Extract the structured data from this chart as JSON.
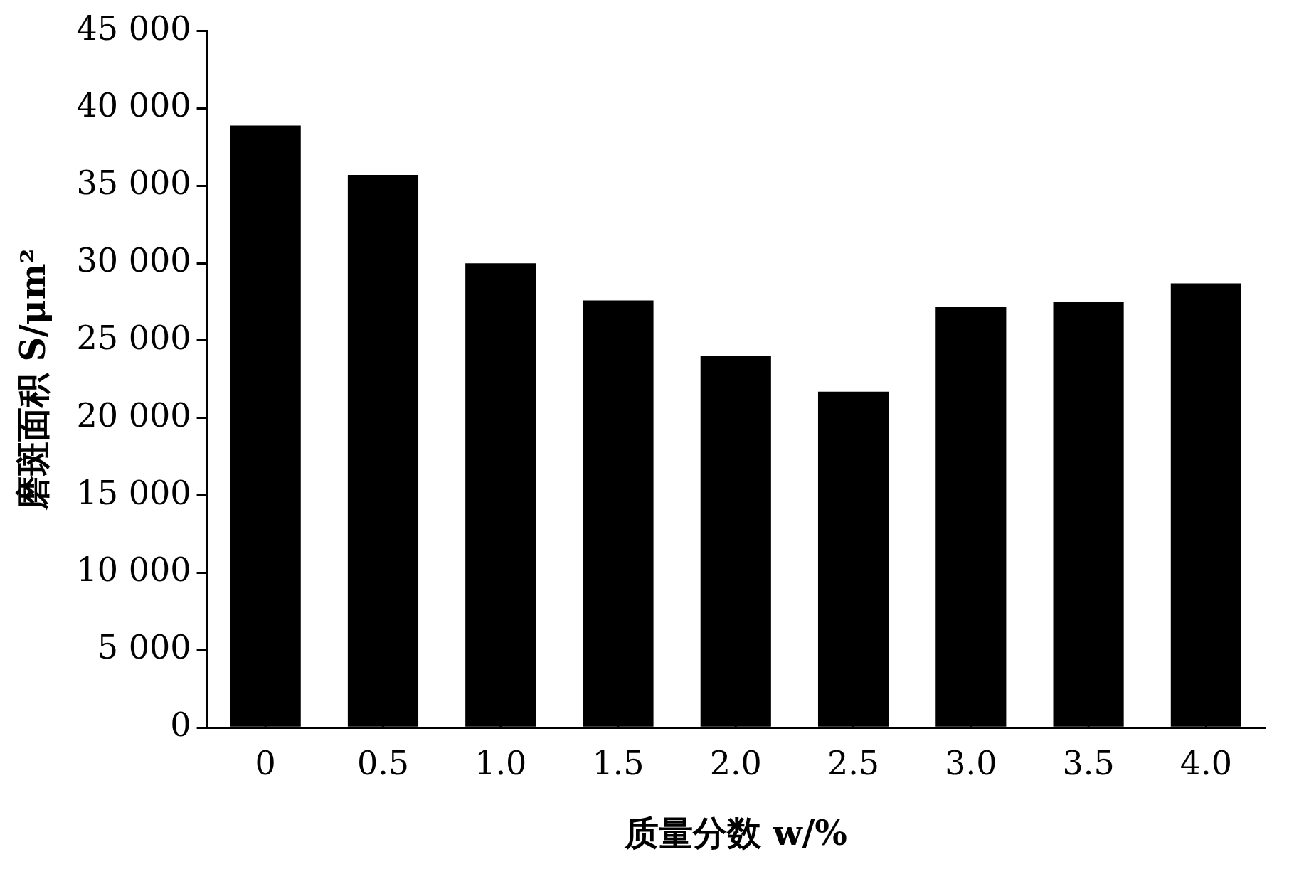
{
  "chart_data": {
    "type": "bar",
    "xlabel": "质量分数 w/%",
    "ylabel": "磨斑面积 S/μm²",
    "categories": [
      "0",
      "0.5",
      "1.0",
      "1.5",
      "2.0",
      "2.5",
      "3.0",
      "3.5",
      "4.0"
    ],
    "series": [
      {
        "color": "#000000",
        "values": [
          38900,
          35700,
          30000,
          27600,
          24000,
          21700,
          27200,
          27500,
          28700
        ]
      }
    ],
    "ylim": [
      0,
      45000
    ],
    "yticks": [
      {
        "value": 0,
        "label": "0"
      },
      {
        "value": 5000,
        "label": "5 000"
      },
      {
        "value": 10000,
        "label": "10 000"
      },
      {
        "value": 15000,
        "label": "15 000"
      },
      {
        "value": 20000,
        "label": "20 000"
      },
      {
        "value": 25000,
        "label": "25 000"
      },
      {
        "value": 30000,
        "label": "30 000"
      },
      {
        "value": 35000,
        "label": "35 000"
      },
      {
        "value": 40000,
        "label": "40 000"
      },
      {
        "value": 45000,
        "label": "45 000"
      }
    ]
  }
}
